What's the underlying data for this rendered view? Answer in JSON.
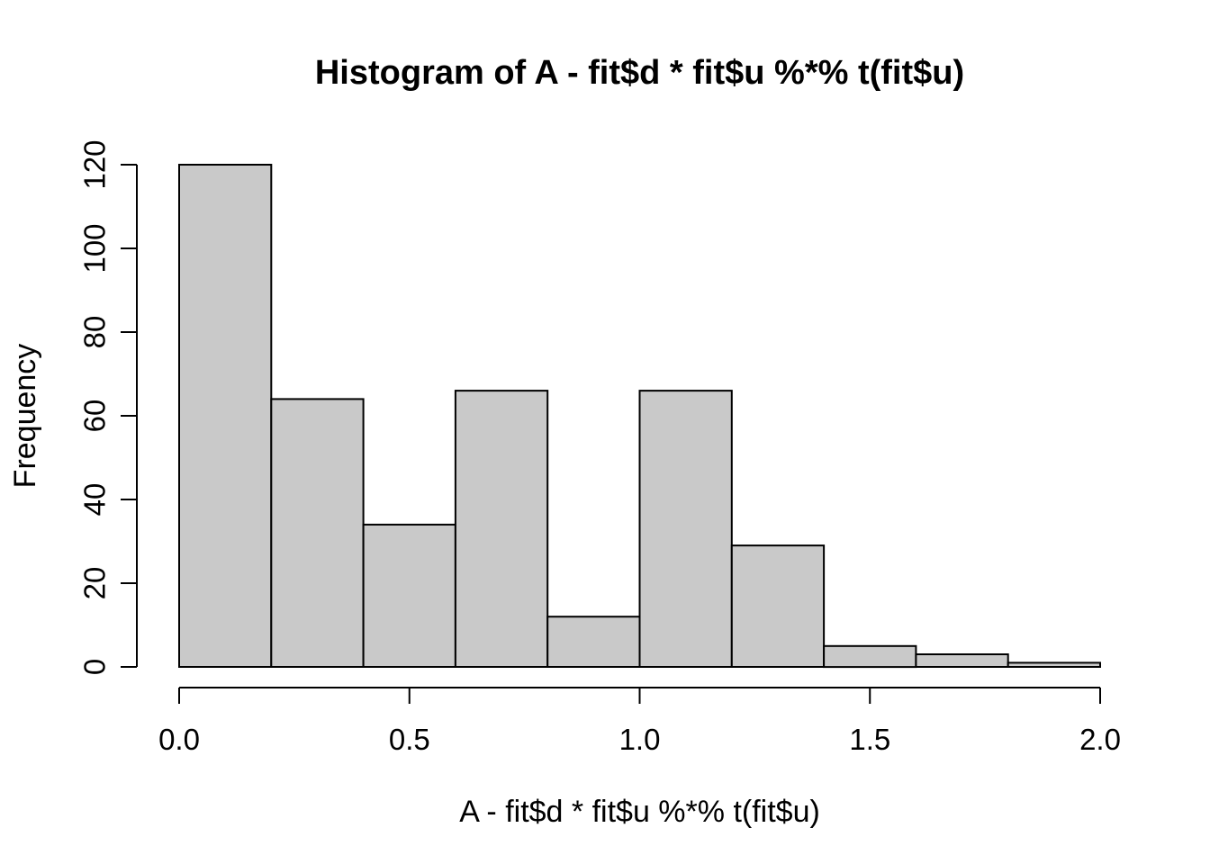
{
  "title": "Histogram of A - fit$d * fit$u %*% t(fit$u)",
  "colors": {
    "background": "#ffffff",
    "bar_fill": "#C9C9C9",
    "bar_border": "#000000",
    "axis": "#000000",
    "text": "#000000"
  },
  "chart_data": {
    "type": "bar",
    "subtype": "histogram",
    "title": "Histogram of A - fit$d * fit$u %*% t(fit$u)",
    "xlabel": "A - fit$d * fit$u %*% t(fit$u)",
    "ylabel": "Frequency",
    "bin_edges": [
      0.0,
      0.2,
      0.4,
      0.6,
      0.8,
      1.0,
      1.2,
      1.4,
      1.6,
      1.8,
      2.0
    ],
    "values": [
      120,
      64,
      34,
      66,
      12,
      66,
      29,
      5,
      3,
      1
    ],
    "categories": [
      "0.0-0.2",
      "0.2-0.4",
      "0.4-0.6",
      "0.6-0.8",
      "0.8-1.0",
      "1.0-1.2",
      "1.2-1.4",
      "1.4-1.6",
      "1.6-1.8",
      "1.8-2.0"
    ],
    "x_tick_values": [
      0.0,
      0.5,
      1.0,
      1.5,
      2.0
    ],
    "x_tick_labels": [
      "0.0",
      "0.5",
      "1.0",
      "1.5",
      "2.0"
    ],
    "y_tick_values": [
      0,
      20,
      40,
      60,
      80,
      100,
      120
    ],
    "y_tick_labels": [
      "0",
      "20",
      "40",
      "60",
      "80",
      "100",
      "120"
    ],
    "xlim": [
      0.0,
      2.0
    ],
    "ylim": [
      0,
      120
    ],
    "grid": false,
    "legend_position": "none"
  }
}
